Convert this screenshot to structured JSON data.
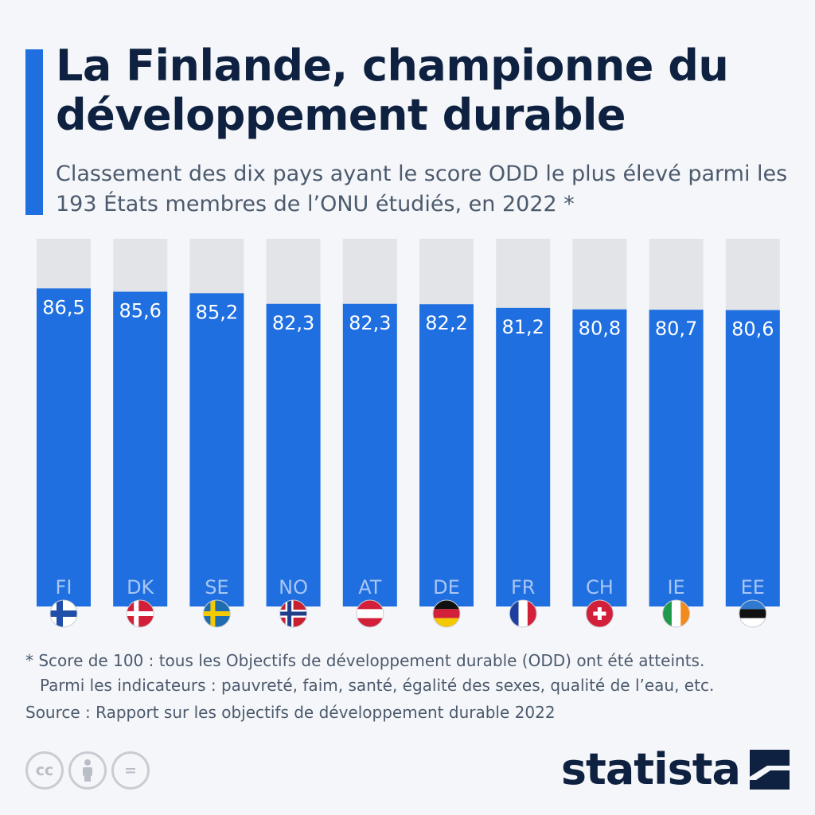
{
  "header": {
    "title": "La Finlande, championne du développement durable",
    "subtitle": "Classement des dix pays ayant le score ODD le plus élevé parmi les 193 États membres de l’ONU étudiés, en 2022 *"
  },
  "colors": {
    "accent": "#1f6fe0",
    "bar": "#1f6fe0",
    "track": "#e2e4e8",
    "title": "#0f2140",
    "text": "#4c5a6d"
  },
  "chart_data": {
    "type": "bar",
    "categories": [
      "FI",
      "DK",
      "SE",
      "NO",
      "AT",
      "DE",
      "FR",
      "CH",
      "IE",
      "EE"
    ],
    "values": [
      86.5,
      85.6,
      85.2,
      82.3,
      82.3,
      82.2,
      81.2,
      80.8,
      80.7,
      80.6
    ],
    "value_labels": [
      "86,5",
      "85,6",
      "85,2",
      "82,3",
      "82,3",
      "82,2",
      "81,2",
      "80,8",
      "80,7",
      "80,6"
    ],
    "ylim": [
      0,
      100
    ],
    "flags": [
      "finland-flag-icon",
      "denmark-flag-icon",
      "sweden-flag-icon",
      "norway-flag-icon",
      "austria-flag-icon",
      "germany-flag-icon",
      "france-flag-icon",
      "switzerland-flag-icon",
      "ireland-flag-icon",
      "estonia-flag-icon"
    ]
  },
  "footnote": {
    "line1": "* Score de 100 : tous les Objectifs de développement durable (ODD) ont été atteints.",
    "line2": "Parmi les indicateurs : pauvreté, faim, santé, égalité des sexes, qualité de l’eau, etc."
  },
  "source": "Source : Rapport sur les objectifs de développement durable 2022",
  "license": {
    "icons": [
      "cc-icon",
      "attribution-icon",
      "no-derivatives-icon"
    ],
    "cc_text": "cc",
    "nd_text": "="
  },
  "brand": {
    "name": "statista",
    "logo_icon": "statista-logo-icon"
  }
}
